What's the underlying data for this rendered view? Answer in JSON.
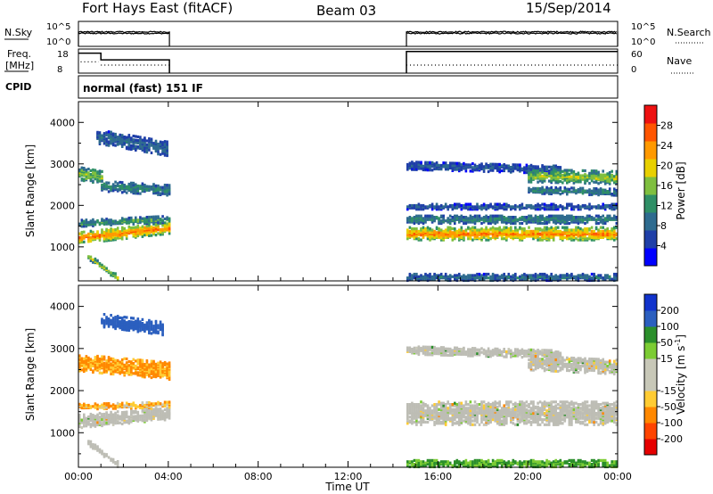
{
  "header": {
    "station": "Fort Hays East (fitACF)",
    "beam": "Beam 03",
    "date": "15/Sep/2014"
  },
  "noise_panel": {
    "left_label": "N.Sky",
    "left_ticks": [
      "10^5",
      "10^0"
    ],
    "right_label": "N.Search",
    "right_ticks": [
      "10^5",
      "10^0"
    ]
  },
  "freq_panel": {
    "left_label_line1": "Freq.",
    "left_label_line2": "[MHz]",
    "left_ticks": [
      "18",
      "8"
    ],
    "right_label": "Nave",
    "right_ticks": [
      "60",
      "0"
    ]
  },
  "cpid": {
    "label": "CPID",
    "value": "normal (fast) 151 IF"
  },
  "colors": {
    "power_scale": [
      "#0000ff",
      "#1f3fa8",
      "#2e6b8f",
      "#2f8f66",
      "#7fbf3f",
      "#e8d000",
      "#ff9900",
      "#ff5500",
      "#ee1111"
    ],
    "velocity_scale": [
      "#e60000",
      "#ff4400",
      "#ff8800",
      "#ffcc33",
      "#c8c8b8",
      "#c8c8b8",
      "#7ccc33",
      "#2b8f2b",
      "#2b5fbf",
      "#1133cc"
    ],
    "ground_scatter": "#bdbdb5"
  },
  "chart_data": [
    {
      "type": "line",
      "title": "",
      "ylabel": "N.Sky",
      "y_scale": "log",
      "ylim_log10": [
        0,
        5
      ],
      "segments_hours": [
        [
          0,
          4.05
        ],
        [
          14.6,
          24
        ]
      ],
      "series": [
        {
          "name": "N.Sky",
          "value_log10": 2.6
        },
        {
          "name": "N.Search",
          "value_log10": 2.9
        }
      ]
    },
    {
      "type": "line",
      "ylabel": "Freq. [MHz]",
      "ylim": [
        8,
        18
      ],
      "y2label": "Nave",
      "y2lim": [
        0,
        60
      ],
      "series": [
        {
          "name": "Freq.",
          "points": [
            [
              0,
              16.3
            ],
            [
              1.0,
              16.3
            ],
            [
              1.0,
              13.5
            ],
            [
              4.05,
              13.5
            ],
            [
              14.6,
              17
            ],
            [
              24,
              17
            ]
          ]
        },
        {
          "name": "Nave",
          "points": [
            [
              0.1,
              28
            ],
            [
              0.9,
              28
            ],
            [
              1.0,
              20
            ],
            [
              4.05,
              20
            ],
            [
              14.6,
              20
            ],
            [
              24,
              20
            ]
          ]
        }
      ]
    },
    {
      "type": "heatmap",
      "quantity": "Power",
      "ylabel": "Slant Range [km]",
      "colorbar_label": "Power [dB]",
      "colorbar_ticks": [
        4,
        8,
        12,
        16,
        20,
        24,
        28
      ],
      "clim": [
        0,
        32
      ],
      "ylim": [
        180,
        4500
      ],
      "yticks": [
        1000,
        2000,
        3000,
        4000
      ],
      "xlim_hours": [
        0,
        24
      ],
      "echo_bands": [
        {
          "t": [
            0,
            4.05
          ],
          "r_center_start": 1250,
          "r_center_end": 1500,
          "width_km": 280,
          "power": 24
        },
        {
          "t": [
            0,
            4.05
          ],
          "r_center_start": 1600,
          "r_center_end": 1700,
          "width_km": 150,
          "power": 12
        },
        {
          "t": [
            0,
            1.0
          ],
          "r_center_start": 2800,
          "r_center_end": 2700,
          "width_km": 300,
          "power": 16
        },
        {
          "t": [
            1.0,
            4.05
          ],
          "r_center_start": 2500,
          "r_center_end": 2400,
          "width_km": 250,
          "power": 10
        },
        {
          "t": [
            0.8,
            4.0
          ],
          "r_center_start": 3700,
          "r_center_end": 3400,
          "width_km": 350,
          "power": 7
        },
        {
          "t": [
            0.4,
            1.8
          ],
          "r_center_start": 800,
          "r_center_end": 250,
          "width_km": 120,
          "power": 16
        },
        {
          "t": [
            14.6,
            24
          ],
          "r_center_start": 1350,
          "r_center_end": 1350,
          "width_km": 300,
          "power": 24
        },
        {
          "t": [
            14.6,
            24
          ],
          "r_center_start": 1700,
          "r_center_end": 1700,
          "width_km": 200,
          "power": 10
        },
        {
          "t": [
            14.6,
            24
          ],
          "r_center_start": 2000,
          "r_center_end": 2000,
          "width_km": 120,
          "power": 6
        },
        {
          "t": [
            14.6,
            21.5
          ],
          "r_center_start": 3000,
          "r_center_end": 2900,
          "width_km": 200,
          "power": 6
        },
        {
          "t": [
            20,
            24
          ],
          "r_center_start": 2750,
          "r_center_end": 2700,
          "width_km": 300,
          "power": 16
        },
        {
          "t": [
            20,
            24
          ],
          "r_center_start": 2400,
          "r_center_end": 2350,
          "width_km": 150,
          "power": 10
        },
        {
          "t": [
            14.6,
            24
          ],
          "r_center_start": 300,
          "r_center_end": 300,
          "width_km": 150,
          "power": 8
        }
      ]
    },
    {
      "type": "heatmap",
      "quantity": "Velocity",
      "ylabel": "Slant Range [km]",
      "colorbar_label": "Velocity [m s^-1]",
      "colorbar_ticks": [
        -200,
        -100,
        -50,
        -15,
        15,
        50,
        100,
        200
      ],
      "ylim": [
        180,
        4500
      ],
      "yticks": [
        1000,
        2000,
        3000,
        4000
      ],
      "xlim_hours": [
        0,
        24
      ],
      "xticks": [
        "00:00",
        "04:00",
        "08:00",
        "12:00",
        "16:00",
        "20:00",
        "00:00"
      ],
      "xlabel": "Time UT",
      "echo_bands": [
        {
          "t": [
            0,
            4.05
          ],
          "r_center_start": 1300,
          "r_center_end": 1500,
          "width_km": 300,
          "velocity": "ground"
        },
        {
          "t": [
            0,
            4.05
          ],
          "r_center_start": 1650,
          "r_center_end": 1700,
          "width_km": 120,
          "velocity": -40
        },
        {
          "t": [
            0,
            4.05
          ],
          "r_center_start": 2700,
          "r_center_end": 2500,
          "width_km": 400,
          "velocity": -60
        },
        {
          "t": [
            1.0,
            3.8
          ],
          "r_center_start": 3700,
          "r_center_end": 3500,
          "width_km": 300,
          "velocity": 150
        },
        {
          "t": [
            0.4,
            1.8
          ],
          "r_center_start": 800,
          "r_center_end": 250,
          "width_km": 120,
          "velocity": "ground"
        },
        {
          "t": [
            14.6,
            24
          ],
          "r_center_start": 1500,
          "r_center_end": 1500,
          "width_km": 550,
          "velocity": "ground"
        },
        {
          "t": [
            14.6,
            21.5
          ],
          "r_center_start": 3000,
          "r_center_end": 2900,
          "width_km": 200,
          "velocity": "ground"
        },
        {
          "t": [
            20,
            24
          ],
          "r_center_start": 2700,
          "r_center_end": 2600,
          "width_km": 350,
          "velocity": "ground"
        },
        {
          "t": [
            14.6,
            24
          ],
          "r_center_start": 300,
          "r_center_end": 300,
          "width_km": 150,
          "velocity": 60
        }
      ]
    }
  ]
}
